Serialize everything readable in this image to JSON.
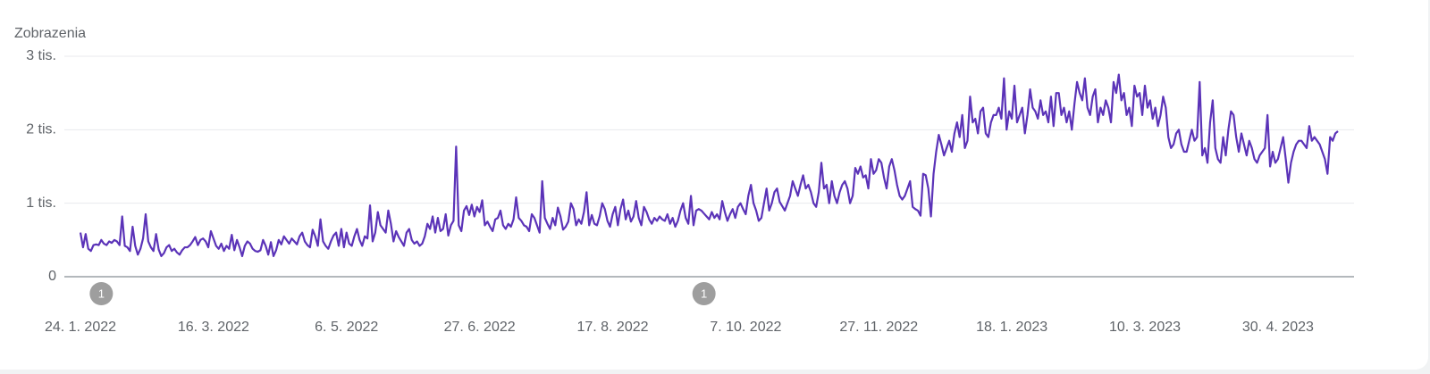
{
  "chart_data": {
    "type": "line",
    "ylabel": "Zobrazenia",
    "color": "#5b33b8",
    "ylim": [
      0,
      3000
    ],
    "yticks": [
      0,
      {
        "value": 1000,
        "label": "1 tis."
      },
      {
        "value": 2000,
        "label": "2 tis."
      },
      {
        "value": 3000,
        "label": "3 tis."
      }
    ],
    "grid": true,
    "annotations": [
      {
        "text": "1",
        "at": 8
      },
      {
        "text": "1",
        "at": 239
      }
    ],
    "categories": [
      "24. 1. 2022",
      null,
      null,
      null,
      null,
      null,
      null,
      null,
      null,
      null,
      null,
      null,
      null,
      null,
      null,
      null,
      null,
      null,
      null,
      null,
      null,
      null,
      null,
      null,
      null,
      null,
      null,
      null,
      null,
      null,
      null,
      null,
      null,
      null,
      null,
      null,
      null,
      null,
      null,
      null,
      null,
      null,
      null,
      null,
      null,
      null,
      null,
      null,
      null,
      null,
      null,
      "16. 3. 2022",
      null,
      null,
      null,
      null,
      null,
      null,
      null,
      null,
      null,
      null,
      null,
      null,
      null,
      null,
      null,
      null,
      null,
      null,
      null,
      null,
      null,
      null,
      null,
      null,
      null,
      null,
      null,
      null,
      null,
      null,
      null,
      null,
      null,
      null,
      null,
      null,
      null,
      null,
      null,
      null,
      null,
      null,
      null,
      null,
      null,
      null,
      null,
      null,
      null,
      null,
      "6. 5. 2022",
      null,
      null,
      null,
      null,
      null,
      null,
      null,
      null,
      null,
      null,
      null,
      null,
      null,
      null,
      null,
      null,
      null,
      null,
      null,
      null,
      null,
      null,
      null,
      null,
      null,
      null,
      null,
      null,
      null,
      null,
      null,
      null,
      null,
      null,
      null,
      null,
      null,
      null,
      null,
      null,
      null,
      null,
      null,
      null,
      null,
      null,
      null,
      null,
      null,
      null,
      "27. 6. 2022",
      null,
      null,
      null,
      null,
      null,
      null,
      null,
      null,
      null,
      null,
      null,
      null,
      null,
      null,
      null,
      null,
      null,
      null,
      null,
      null,
      null,
      null,
      null,
      null,
      null,
      null,
      null,
      null,
      null,
      null,
      null,
      null,
      null,
      null,
      null,
      null,
      null,
      null,
      null,
      null,
      null,
      null,
      null,
      null,
      null,
      null,
      null,
      null,
      null,
      null,
      "17. 8. 2022",
      null,
      null,
      null,
      null,
      null,
      null,
      null,
      null,
      null,
      null,
      null,
      null,
      null,
      null,
      null,
      null,
      null,
      null,
      null,
      null,
      null,
      null,
      null,
      null,
      null,
      null,
      null,
      null,
      null,
      null,
      null,
      null,
      null,
      null,
      null,
      null,
      null,
      null,
      null,
      null,
      null,
      null,
      null,
      null,
      null,
      null,
      null,
      null,
      null,
      null,
      "7. 10. 2022",
      null,
      null,
      null,
      null,
      null,
      null,
      null,
      null,
      null,
      null,
      null,
      null,
      null,
      null,
      null,
      null,
      null,
      null,
      null,
      null,
      null,
      null,
      null,
      null,
      null,
      null,
      null,
      null,
      null,
      null,
      null,
      null,
      null,
      null,
      null,
      null,
      null,
      null,
      null,
      null,
      null,
      null,
      null,
      null,
      null,
      null,
      null,
      null,
      null,
      null,
      "27. 11. 2022",
      null,
      null,
      null,
      null,
      null,
      null,
      null,
      null,
      null,
      null,
      null,
      null,
      null,
      null,
      null,
      null,
      null,
      null,
      null,
      null,
      null,
      null,
      null,
      null,
      null,
      null,
      null,
      null,
      null,
      null,
      null,
      null,
      null,
      null,
      null,
      null,
      null,
      null,
      null,
      null,
      null,
      null,
      null,
      null,
      null,
      null,
      null,
      null,
      null,
      null,
      "18. 1. 2023",
      null,
      null,
      null,
      null,
      null,
      null,
      null,
      null,
      null,
      null,
      null,
      null,
      null,
      null,
      null,
      null,
      null,
      null,
      null,
      null,
      null,
      null,
      null,
      null,
      null,
      null,
      null,
      null,
      null,
      null,
      null,
      null,
      null,
      null,
      null,
      null,
      null,
      null,
      null,
      null,
      null,
      null,
      null,
      null,
      null,
      null,
      null,
      null,
      null,
      null,
      "10. 3. 2023",
      null,
      null,
      null,
      null,
      null,
      null,
      null,
      null,
      null,
      null,
      null,
      null,
      null,
      null,
      null,
      null,
      null,
      null,
      null,
      null,
      null,
      null,
      null,
      null,
      null,
      null,
      null,
      null,
      null,
      null,
      null,
      null,
      null,
      null,
      null,
      null,
      null,
      null,
      null,
      null,
      null,
      null,
      null,
      null,
      null,
      null,
      null,
      null,
      null,
      null,
      "30. 4. 2023",
      null,
      null,
      null,
      null,
      null,
      null,
      null,
      null,
      null,
      null,
      null,
      null,
      null,
      null,
      null,
      null,
      null,
      null,
      null,
      null,
      null,
      null,
      null
    ],
    "values": [
      600,
      400,
      580,
      380,
      350,
      430,
      440,
      430,
      500,
      450,
      430,
      480,
      460,
      500,
      480,
      430,
      820,
      420,
      400,
      350,
      680,
      420,
      300,
      380,
      520,
      850,
      480,
      400,
      350,
      580,
      370,
      280,
      320,
      400,
      430,
      350,
      380,
      330,
      300,
      360,
      400,
      400,
      430,
      480,
      540,
      430,
      500,
      520,
      480,
      400,
      620,
      520,
      420,
      380,
      450,
      350,
      420,
      380,
      570,
      360,
      500,
      400,
      280,
      420,
      480,
      450,
      380,
      350,
      340,
      360,
      500,
      420,
      300,
      470,
      280,
      360,
      500,
      440,
      550,
      500,
      450,
      520,
      480,
      440,
      550,
      600,
      480,
      430,
      400,
      640,
      550,
      420,
      780,
      480,
      420,
      380,
      480,
      560,
      600,
      420,
      650,
      400,
      600,
      450,
      420,
      550,
      650,
      500,
      420,
      550,
      520,
      970,
      480,
      600,
      880,
      700,
      650,
      600,
      900,
      720,
      480,
      620,
      540,
      480,
      420,
      600,
      650,
      500,
      450,
      480,
      420,
      450,
      550,
      720,
      650,
      820,
      600,
      800,
      620,
      650,
      850,
      560,
      700,
      760,
      1770,
      700,
      620,
      900,
      960,
      840,
      980,
      820,
      950,
      880,
      1040,
      700,
      750,
      680,
      620,
      780,
      800,
      900,
      700,
      650,
      720,
      680,
      780,
      1080,
      800,
      760,
      700,
      680,
      620,
      850,
      800,
      700,
      600,
      1300,
      800,
      720,
      650,
      800,
      700,
      940,
      820,
      640,
      680,
      750,
      1000,
      920,
      700,
      780,
      720,
      880,
      1150,
      700,
      840,
      720,
      700,
      820,
      1000,
      920,
      760,
      680,
      850,
      950,
      700,
      920,
      1050,
      780,
      900,
      750,
      820,
      1030,
      800,
      700,
      950,
      880,
      780,
      720,
      800,
      760,
      820,
      780,
      760,
      850,
      720,
      800,
      680,
      760,
      900,
      1000,
      800,
      720,
      1100,
      700,
      900,
      920,
      900,
      860,
      820,
      780,
      880,
      800,
      850,
      780,
      1030,
      880,
      760,
      850,
      920,
      800,
      950,
      1000,
      920,
      850,
      1100,
      1250,
      1000,
      900,
      760,
      800,
      1000,
      1200,
      900,
      1000,
      1150,
      1200,
      1020,
      960,
      900,
      1000,
      1100,
      1300,
      1200,
      1100,
      1250,
      1380,
      1200,
      1250,
      1150,
      1000,
      950,
      1150,
      1550,
      1200,
      1250,
      1000,
      1300,
      1100,
      1000,
      1150,
      1250,
      1300,
      1200,
      1000,
      1100,
      1480,
      1400,
      1500,
      1350,
      1380,
      1200,
      1600,
      1400,
      1450,
      1600,
      1550,
      1350,
      1200,
      1500,
      1600,
      1450,
      1250,
      1100,
      1050,
      1100,
      1200,
      1300,
      950,
      920,
      900,
      830,
      1400,
      1380,
      1200,
      820,
      1400,
      1700,
      1930,
      1800,
      1650,
      1750,
      1850,
      1700,
      1950,
      2100,
      1900,
      2200,
      1750,
      1850,
      2450,
      2100,
      2150,
      1950,
      2250,
      2300,
      1950,
      1900,
      2100,
      2200,
      2200,
      2300,
      2150,
      2700,
      2000,
      2250,
      2150,
      2600,
      2100,
      2200,
      2300,
      1950,
      2200,
      2550,
      2300,
      2250,
      2150,
      2400,
      2200,
      2250,
      2100,
      2450,
      2050,
      2500,
      2500,
      2200,
      2300,
      2100,
      2250,
      2000,
      2350,
      2650,
      2500,
      2400,
      2700,
      2300,
      2200,
      2450,
      2550,
      2100,
      2300,
      2200,
      2400,
      2300,
      2100,
      2650,
      2500,
      2750,
      2400,
      2500,
      2200,
      2300,
      2050,
      2600,
      2450,
      2500,
      2200,
      2600,
      2300,
      2400,
      2150,
      2300,
      2050,
      2200,
      2450,
      2300,
      1900,
      1750,
      1800,
      1950,
      2000,
      1800,
      1700,
      1700,
      1850,
      2000,
      1850,
      1900,
      2650,
      1650,
      1750,
      1550,
      2100,
      2400,
      1750,
      1600,
      1550,
      1900,
      1650,
      2000,
      2250,
      2200,
      1900,
      1700,
      1950,
      1800,
      1650,
      1850,
      1750,
      1600,
      1550,
      1650,
      1700,
      1750,
      2200,
      1500,
      1700,
      1550,
      1600,
      1750,
      1900,
      1600,
      1280,
      1550,
      1700,
      1800,
      1850,
      1850,
      1800,
      1750,
      2050,
      1850,
      1900,
      1850,
      1800,
      1700,
      1600,
      1400,
      1900,
      1850,
      1950,
      1980
    ]
  }
}
